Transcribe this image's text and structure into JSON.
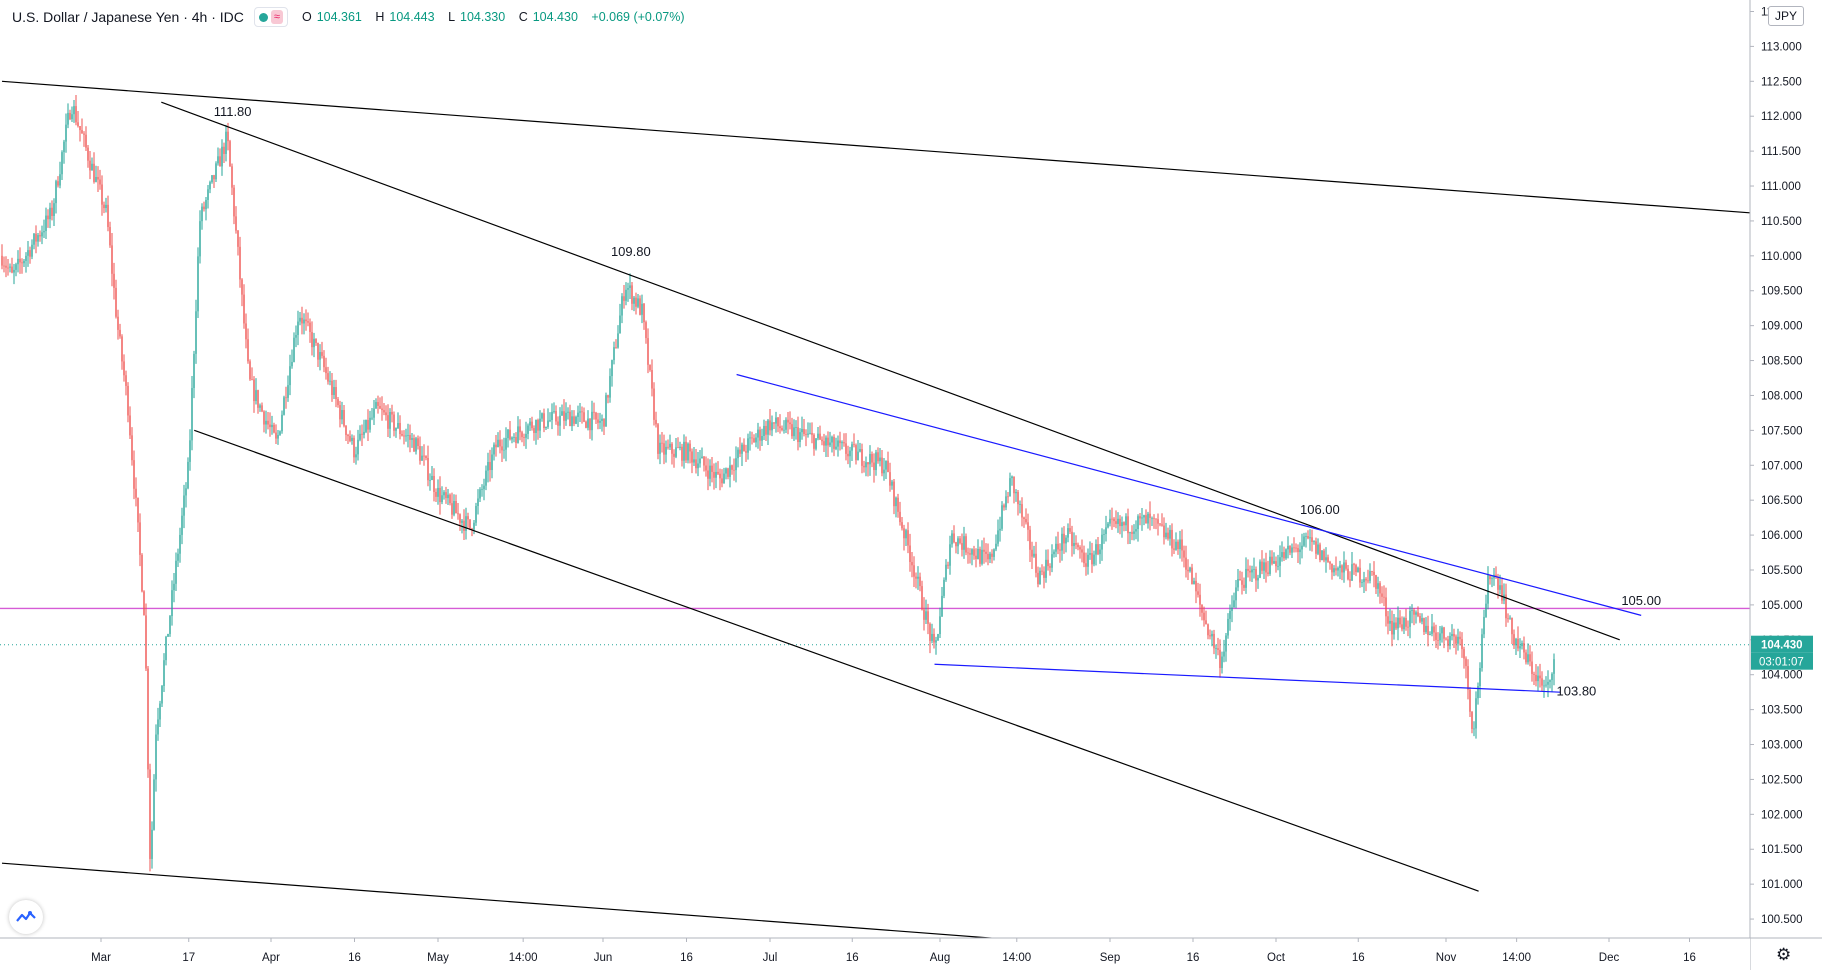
{
  "legend": {
    "symbol": "U.S. Dollar / Japanese Yen · 4h · IDC",
    "o_label": "O",
    "o": "104.361",
    "h_label": "H",
    "h": "104.443",
    "l_label": "L",
    "l": "104.330",
    "c_label": "C",
    "c": "104.430",
    "change": "+0.069 (+0.07%)"
  },
  "currency_badge": "JPY",
  "icons": [
    "status-dot-icon",
    "indicator-wave-icon",
    "tradingview-logo-icon",
    "settings-gear-icon"
  ],
  "colors": {
    "up": "#26a69a",
    "down": "#ef5350",
    "trendline": "#000000",
    "channel": "#1a1aff",
    "support_level": "#d65bd6",
    "last_price": "#26a69a"
  },
  "chart_data": {
    "type": "candlestick",
    "title": "U.S. Dollar / Japanese Yen · 4h · IDC",
    "y_axis": {
      "range": [
        100.2,
        113.55
      ],
      "ticks": [
        "113.500",
        "113.000",
        "112.500",
        "112.000",
        "111.500",
        "111.000",
        "110.500",
        "110.000",
        "109.500",
        "109.000",
        "108.500",
        "108.000",
        "107.500",
        "107.000",
        "106.500",
        "106.000",
        "105.500",
        "105.000",
        "104.500",
        "104.000",
        "103.500",
        "103.000",
        "102.500",
        "102.000",
        "101.500",
        "101.000",
        "100.500"
      ]
    },
    "x_axis": {
      "ticks": [
        "Mar",
        "17",
        "Apr",
        "16",
        "May",
        "14:00",
        "Jun",
        "16",
        "Jul",
        "16",
        "Aug",
        "14:00",
        "Sep",
        "16",
        "Oct",
        "16",
        "Nov",
        "14:00",
        "Dec",
        "16"
      ]
    },
    "price_path": [
      {
        "date": "Feb 20",
        "price": 110.0
      },
      {
        "date": "Feb 21",
        "price": 109.7
      },
      {
        "date": "Feb 25",
        "price": 110.6
      },
      {
        "date": "Feb 27",
        "price": 112.2
      },
      {
        "date": "Mar 2",
        "price": 110.6
      },
      {
        "date": "Mar 4",
        "price": 109.0
      },
      {
        "date": "Mar 6",
        "price": 107.8
      },
      {
        "date": "Mar 9",
        "price": 104.8
      },
      {
        "date": "Mar 10",
        "price": 101.2
      },
      {
        "date": "Mar 11",
        "price": 103.2
      },
      {
        "date": "Mar 13",
        "price": 104.5
      },
      {
        "date": "Mar 17",
        "price": 107.0
      },
      {
        "date": "Mar 19",
        "price": 110.5
      },
      {
        "date": "Mar 24",
        "price": 111.7
      },
      {
        "date": "Mar 26",
        "price": 110.0
      },
      {
        "date": "Mar 28",
        "price": 108.2
      },
      {
        "date": "Apr 2",
        "price": 107.3
      },
      {
        "date": "Apr 6",
        "price": 109.2
      },
      {
        "date": "Apr 10",
        "price": 108.5
      },
      {
        "date": "Apr 16",
        "price": 107.2
      },
      {
        "date": "Apr 20",
        "price": 107.8
      },
      {
        "date": "Apr 27",
        "price": 107.3
      },
      {
        "date": "May 1",
        "price": 106.6
      },
      {
        "date": "May 7",
        "price": 106.1
      },
      {
        "date": "May 12",
        "price": 107.3
      },
      {
        "date": "May 19",
        "price": 107.6
      },
      {
        "date": "May 26",
        "price": 107.7
      },
      {
        "date": "Jun 1",
        "price": 107.6
      },
      {
        "date": "Jun 5",
        "price": 109.6
      },
      {
        "date": "Jun 8",
        "price": 109.2
      },
      {
        "date": "Jun 11",
        "price": 107.2
      },
      {
        "date": "Jun 16",
        "price": 107.2
      },
      {
        "date": "Jun 22",
        "price": 106.8
      },
      {
        "date": "Jun 26",
        "price": 107.2
      },
      {
        "date": "Jul 1",
        "price": 107.6
      },
      {
        "date": "Jul 8",
        "price": 107.4
      },
      {
        "date": "Jul 15",
        "price": 107.2
      },
      {
        "date": "Jul 22",
        "price": 107.0
      },
      {
        "date": "Jul 27",
        "price": 105.6
      },
      {
        "date": "Jul 31",
        "price": 104.3
      },
      {
        "date": "Aug 3",
        "price": 106.0
      },
      {
        "date": "Aug 10",
        "price": 105.6
      },
      {
        "date": "Aug 14",
        "price": 106.8
      },
      {
        "date": "Aug 19",
        "price": 105.4
      },
      {
        "date": "Aug 24",
        "price": 106.0
      },
      {
        "date": "Aug 28",
        "price": 105.6
      },
      {
        "date": "Sep 1",
        "price": 106.1
      },
      {
        "date": "Sep 8",
        "price": 106.2
      },
      {
        "date": "Sep 14",
        "price": 105.8
      },
      {
        "date": "Sep 18",
        "price": 104.8
      },
      {
        "date": "Sep 21",
        "price": 104.2
      },
      {
        "date": "Sep 24",
        "price": 105.3
      },
      {
        "date": "Sep 30",
        "price": 105.6
      },
      {
        "date": "Oct 7",
        "price": 105.9
      },
      {
        "date": "Oct 12",
        "price": 105.5
      },
      {
        "date": "Oct 19",
        "price": 105.4
      },
      {
        "date": "Oct 22",
        "price": 104.7
      },
      {
        "date": "Oct 26",
        "price": 104.8
      },
      {
        "date": "Oct 30",
        "price": 104.6
      },
      {
        "date": "Nov 4",
        "price": 104.5
      },
      {
        "date": "Nov 6",
        "price": 103.2
      },
      {
        "date": "Nov 9",
        "price": 105.5
      },
      {
        "date": "Nov 11",
        "price": 105.3
      },
      {
        "date": "Nov 13",
        "price": 104.6
      },
      {
        "date": "Nov 16",
        "price": 104.2
      },
      {
        "date": "Nov 19",
        "price": 103.8
      },
      {
        "date": "Nov 20",
        "price": 103.8
      },
      {
        "date": "Nov 21",
        "price": 104.43
      }
    ],
    "annotations": [
      {
        "label": "111.80",
        "date": "Mar 25",
        "price": 112.0
      },
      {
        "label": "109.80",
        "date": "Jun 6",
        "price": 110.0
      },
      {
        "label": "106.00",
        "date": "Oct 9",
        "price": 106.3
      },
      {
        "label": "105.00",
        "date": "Dec 7",
        "price": 105.0
      },
      {
        "label": "103.80",
        "date": "Nov 25",
        "price": 103.7
      }
    ],
    "trendlines": [
      {
        "color": "black",
        "from": {
          "date": "Feb 20",
          "price": 112.5
        },
        "to": {
          "date": "Dec 30",
          "price": 110.6
        }
      },
      {
        "color": "black",
        "from": {
          "date": "Mar 12",
          "price": 112.2
        },
        "to": {
          "date": "Dec 3",
          "price": 104.5
        }
      },
      {
        "color": "black",
        "from": {
          "date": "Mar 18",
          "price": 107.5
        },
        "to": {
          "date": "Nov 7",
          "price": 100.9
        }
      },
      {
        "color": "black",
        "from": {
          "date": "Feb 20",
          "price": 101.3
        },
        "to": {
          "date": "Aug 15",
          "price": 100.2
        }
      },
      {
        "color": "blue",
        "from": {
          "date": "Jun 25",
          "price": 108.3
        },
        "to": {
          "date": "Dec 7",
          "price": 104.85
        }
      },
      {
        "color": "blue",
        "from": {
          "date": "Jul 31",
          "price": 104.15
        },
        "to": {
          "date": "Nov 22",
          "price": 103.75
        }
      }
    ],
    "horizontal_levels": [
      {
        "price": 104.95,
        "color": "#d65bd6"
      },
      {
        "price": 104.43,
        "color": "#26a69a",
        "style": "dotted"
      }
    ],
    "last_price_label": "104.430",
    "countdown_label": "03:01:07"
  }
}
